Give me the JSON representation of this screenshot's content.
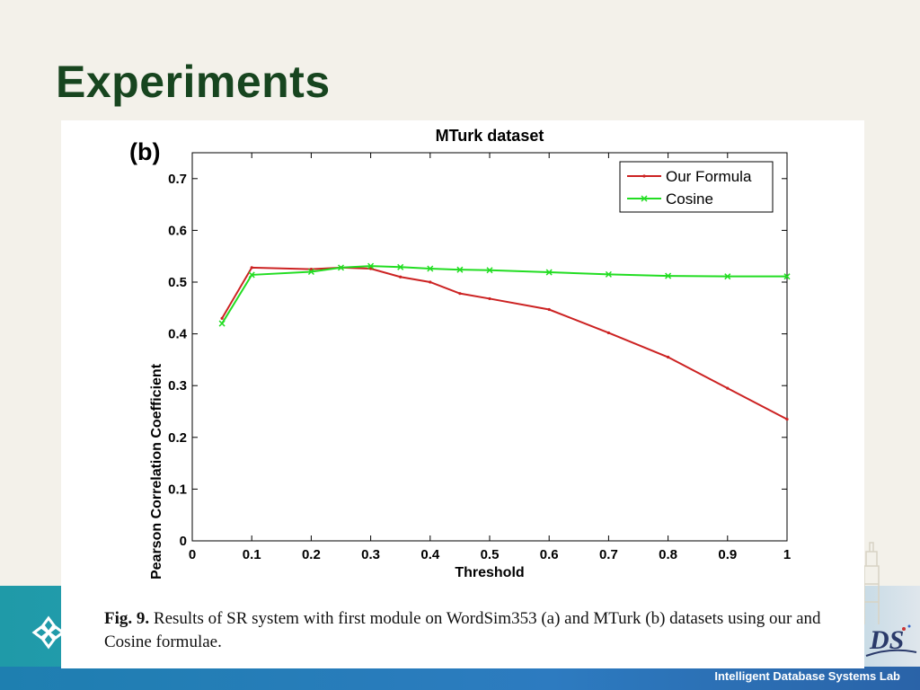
{
  "slide": {
    "title": "Experiments",
    "footer_lab": "Intelligent Database Systems Lab"
  },
  "caption": {
    "label": "Fig. 9.",
    "text": "Results of SR system with first module on WordSim353 (a) and MTurk (b) datasets using our and Cosine formulae."
  },
  "colors": {
    "title": "#17451f",
    "our_formula": "#cc2222",
    "cosine": "#22dd22"
  },
  "chart_data": {
    "type": "line",
    "panel_label": "(b)",
    "title": "MTurk dataset",
    "xlabel": "Threshold",
    "ylabel": "Pearson Correlation Coefficient",
    "xlim": [
      0,
      1
    ],
    "ylim": [
      0,
      0.75
    ],
    "xticks": [
      0,
      0.1,
      0.2,
      0.3,
      0.4,
      0.5,
      0.6,
      0.7,
      0.8,
      0.9,
      1
    ],
    "xtick_labels": [
      "0",
      "0.1",
      "0.2",
      "0.3",
      "0.4",
      "0.5",
      "0.6",
      "0.7",
      "0.8",
      "0.9",
      "1"
    ],
    "yticks": [
      0,
      0.1,
      0.2,
      0.3,
      0.4,
      0.5,
      0.6,
      0.7
    ],
    "ytick_labels": [
      "0",
      "0.1",
      "0.2",
      "0.3",
      "0.4",
      "0.5",
      "0.6",
      "0.7"
    ],
    "legend_position": "top-right",
    "grid": false,
    "series": [
      {
        "name": "Our Formula",
        "color": "#cc2222",
        "marker": "dot",
        "x": [
          0.05,
          0.1,
          0.2,
          0.25,
          0.3,
          0.35,
          0.4,
          0.45,
          0.5,
          0.6,
          0.7,
          0.8,
          0.9,
          1.0
        ],
        "y": [
          0.43,
          0.528,
          0.525,
          0.528,
          0.526,
          0.51,
          0.5,
          0.478,
          0.468,
          0.447,
          0.402,
          0.355,
          0.295,
          0.235
        ]
      },
      {
        "name": "Cosine",
        "color": "#22dd22",
        "marker": "x",
        "x": [
          0.05,
          0.1,
          0.2,
          0.25,
          0.3,
          0.35,
          0.4,
          0.45,
          0.5,
          0.6,
          0.7,
          0.8,
          0.9,
          1.0
        ],
        "y": [
          0.42,
          0.514,
          0.52,
          0.528,
          0.531,
          0.529,
          0.526,
          0.524,
          0.523,
          0.519,
          0.515,
          0.512,
          0.511,
          0.511
        ]
      }
    ]
  }
}
